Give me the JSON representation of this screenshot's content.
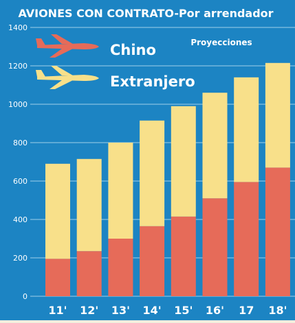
{
  "chart_data": {
    "type": "bar",
    "stacked": true,
    "title": "AVIONES CON CONTRATO-Por arrendador",
    "annotation": "Proyecciones",
    "categories": [
      "11'",
      "12'",
      "13'",
      "14'",
      "15'",
      "16'",
      "17",
      "18'"
    ],
    "series": [
      {
        "name": "Chino",
        "values": [
          195,
          235,
          300,
          365,
          415,
          510,
          595,
          670
        ]
      },
      {
        "name": "Extranjero",
        "values": [
          495,
          480,
          500,
          550,
          575,
          550,
          545,
          545
        ]
      }
    ],
    "totals": [
      690,
      715,
      800,
      915,
      990,
      1060,
      1140,
      1215
    ],
    "ylim": [
      0,
      1400
    ],
    "yticks": [
      0,
      200,
      400,
      600,
      800,
      1000,
      1200,
      1400
    ],
    "grid": true,
    "legend_position": "top-left"
  },
  "colors": {
    "background": "#1c84c3",
    "chino": "#e66b59",
    "extranjero": "#f8e08a",
    "gridline": "#9fd0ea",
    "text": "#ffffff"
  },
  "legend_icons": [
    "airplane-icon",
    "airplane-icon"
  ]
}
